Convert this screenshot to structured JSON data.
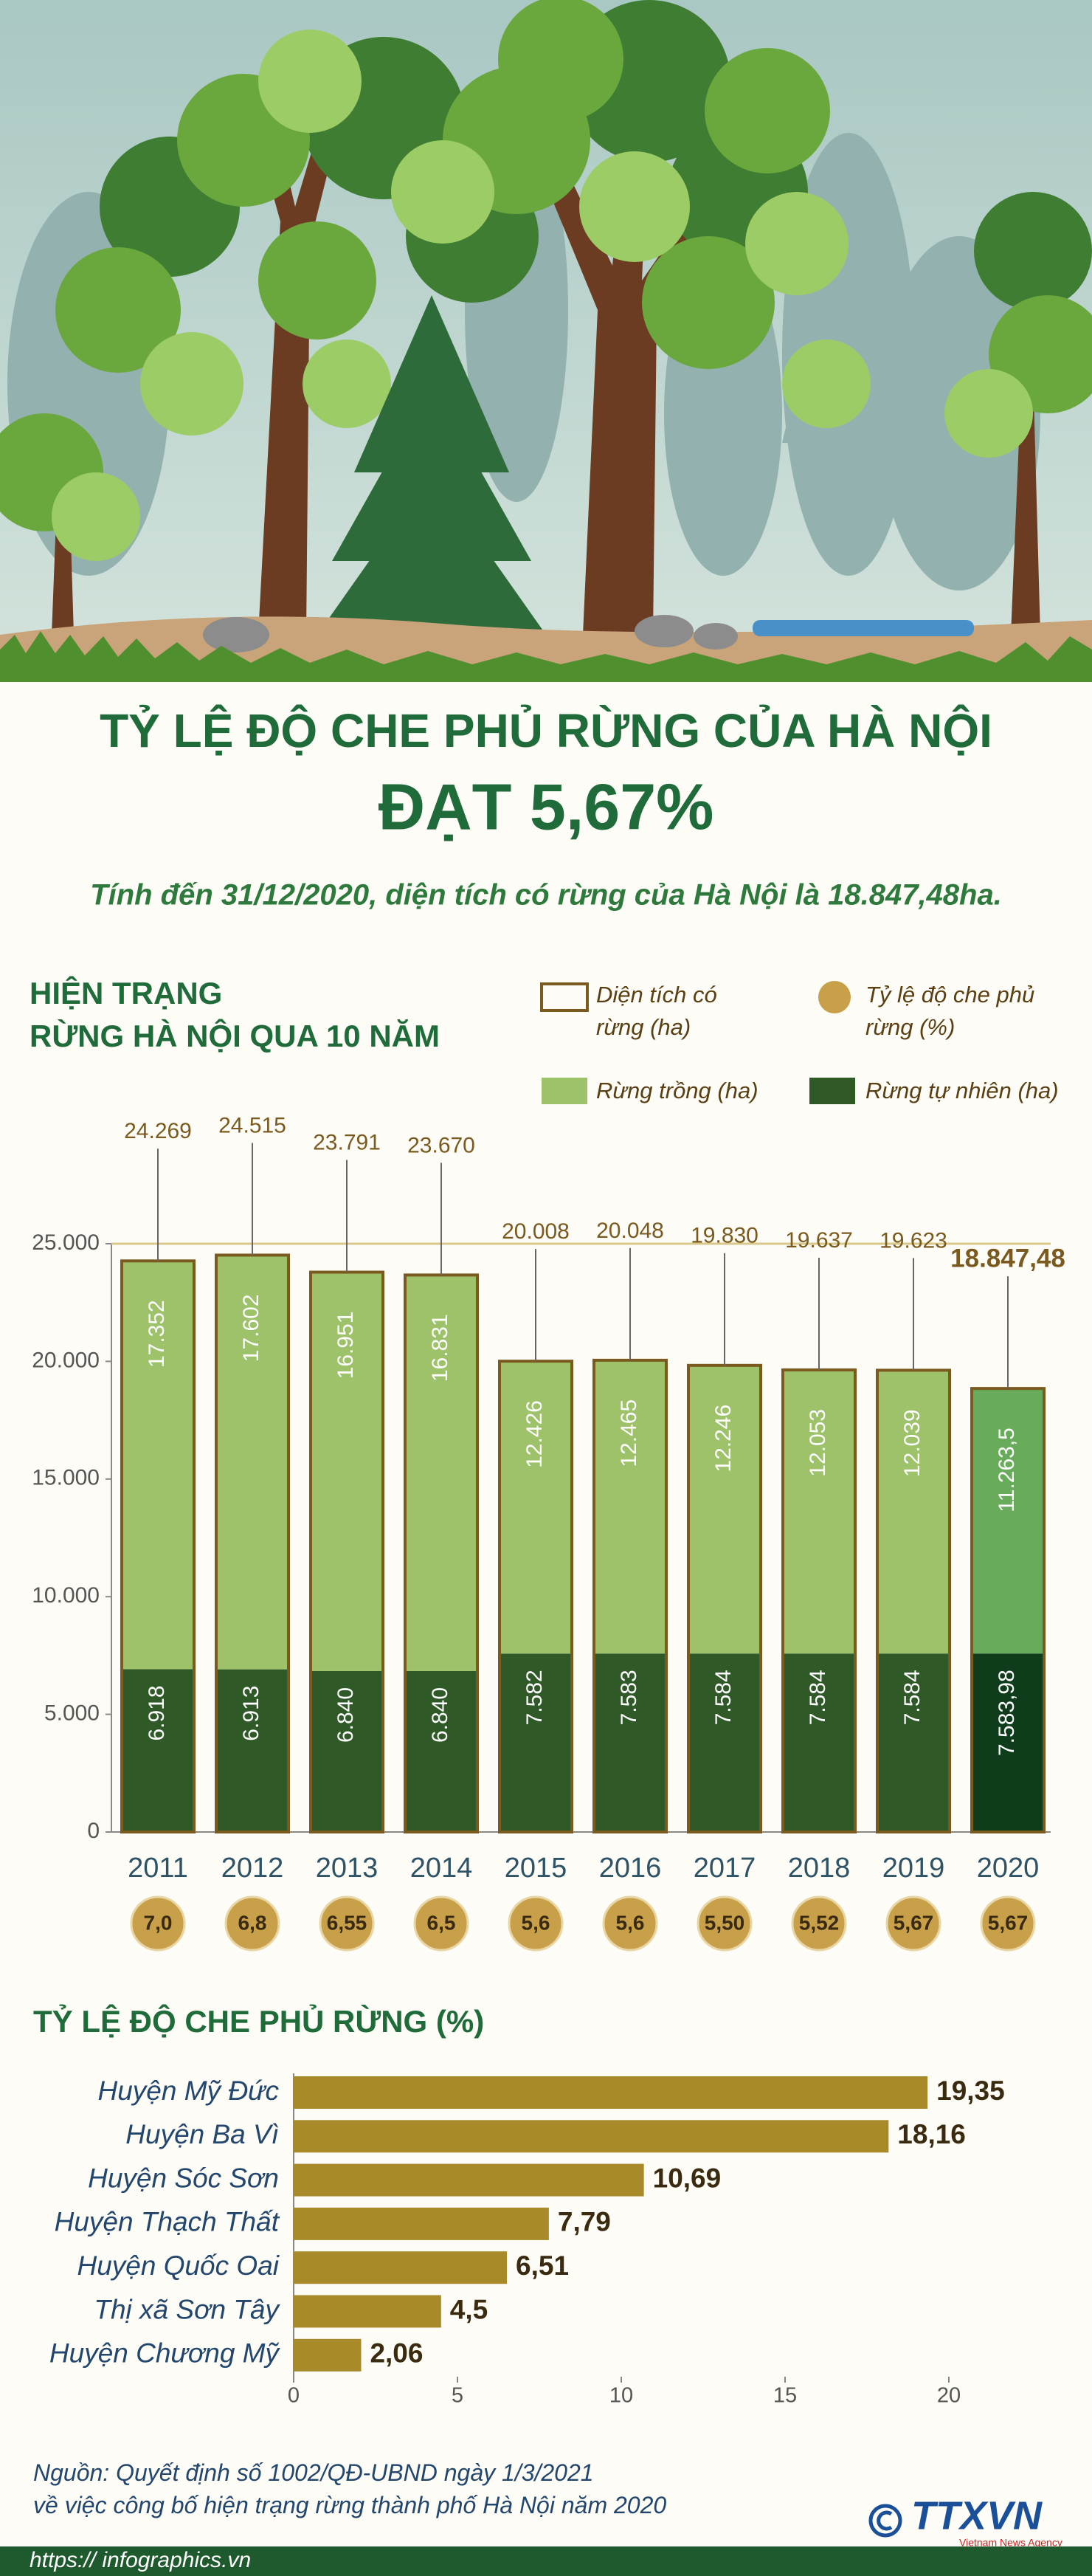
{
  "header": {
    "title": "TỶ LỆ ĐỘ CHE PHỦ RỪNG CỦA HÀ NỘI",
    "title_highlight": "ĐẠT 5,67%",
    "subtitle": "Tính đến 31/12/2020, diện tích có rừng của Hà Nội là 18.847,48ha."
  },
  "chart_data": [
    {
      "type": "bar",
      "stacked": true,
      "title": [
        "HIỆN TRẠNG",
        "RỪNG HÀ NỘI QUA 10 NĂM"
      ],
      "categories": [
        "2011",
        "2012",
        "2013",
        "2014",
        "2015",
        "2016",
        "2017",
        "2018",
        "2019",
        "2020"
      ],
      "series": [
        {
          "name": "Rừng tự nhiên (ha)",
          "color": "#2f5a27",
          "colors": [
            "#2f5a27",
            "#2f5a27",
            "#2f5a27",
            "#2f5a27",
            "#2f5a27",
            "#2f5a27",
            "#2f5a27",
            "#2f5a27",
            "#2f5a27",
            "#0f3d1c"
          ],
          "values": [
            6918,
            6913,
            6840,
            6840,
            7582,
            7583,
            7584,
            7584,
            7584,
            7583.98
          ],
          "value_labels": [
            "6.918",
            "6.913",
            "6.840",
            "6.840",
            "7.582",
            "7.583",
            "7.584",
            "7.584",
            "7.584",
            "7.583,98"
          ]
        },
        {
          "name": "Rừng trồng (ha)",
          "color": "#9dc26a",
          "colors": [
            "#9dc26a",
            "#9dc26a",
            "#9dc26a",
            "#9dc26a",
            "#9dc26a",
            "#9dc26a",
            "#9dc26a",
            "#9dc26a",
            "#9dc26a",
            "#68ab5a"
          ],
          "values": [
            17352,
            17602,
            16951,
            16831,
            12426,
            12465,
            12246,
            12053,
            12039,
            11263.5
          ],
          "value_labels": [
            "17.352",
            "17.602",
            "16.951",
            "16.831",
            "12.426",
            "12.465",
            "12.246",
            "12.053",
            "12.039",
            "11.263,5"
          ]
        }
      ],
      "totals": {
        "name": "Diện tích có rừng (ha)",
        "color": "#7a5a1e",
        "values": [
          24269,
          24515,
          23791,
          23670,
          20008,
          20048,
          19830,
          19637,
          19623,
          18847.48
        ],
        "value_labels": [
          "24.269",
          "24.515",
          "23.791",
          "23.670",
          "20.008",
          "20.048",
          "19.830",
          "19.637",
          "19.623",
          "18.847,48"
        ]
      },
      "ratio": {
        "name": "Tỷ lệ độ che phủ rừng (%)",
        "color": "#c9a04a",
        "values": [
          7.0,
          6.8,
          6.55,
          6.5,
          5.6,
          5.6,
          5.5,
          5.52,
          5.67,
          5.67
        ],
        "value_labels": [
          "7,0",
          "6,8",
          "6,55",
          "6,5",
          "5,6",
          "5,6",
          "5,50",
          "5,52",
          "5,67",
          "5,67"
        ]
      },
      "ylim": [
        0,
        25000
      ],
      "yticks": [
        0,
        {
          "value": 5000,
          "label": "5.000"
        },
        {
          "value": 10000,
          "label": "10.000"
        },
        {
          "value": 15000,
          "label": "15.000"
        },
        {
          "value": 20000,
          "label": "20.000"
        },
        {
          "value": 25000,
          "label": "25.000"
        }
      ]
    },
    {
      "type": "bar",
      "orientation": "horizontal",
      "title": "TỶ LỆ ĐỘ CHE PHỦ RỪNG (%)",
      "categories": [
        "Huyện Mỹ Đức",
        "Huyện Ba Vì",
        "Huyện Sóc Sơn",
        "Huyện Thạch Thất",
        "Huyện Quốc Oai",
        "Thị xã Sơn Tây",
        "Huyện Chương Mỹ"
      ],
      "values": [
        19.35,
        18.16,
        10.69,
        7.79,
        6.51,
        4.5,
        2.06
      ],
      "value_labels": [
        "19,35",
        "18,16",
        "10,69",
        "7,79",
        "6,51",
        "4,5",
        "2,06"
      ],
      "color": "#a88a2a",
      "xlim": [
        0,
        20
      ],
      "xticks": [
        0,
        5,
        10,
        15,
        20
      ]
    }
  ],
  "source": [
    "Nguồn: Quyết định số 1002/QĐ-UBND ngày 1/3/2021",
    "về việc công bố hiện trạng rừng thành phố Hà Nội năm 2020"
  ],
  "footer": {
    "url": "https:// infographics.vn",
    "logo": "TTXVN",
    "logo_sub": "Vietnam News Agency"
  }
}
